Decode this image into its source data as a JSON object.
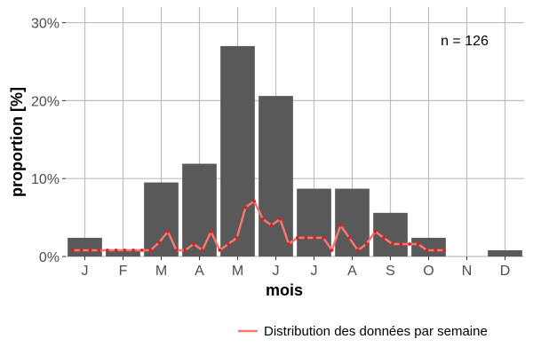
{
  "chart_data": {
    "type": "bar",
    "xlabel": "mois",
    "ylabel": "proportion [%]",
    "categories": [
      "J",
      "F",
      "M",
      "A",
      "M",
      "J",
      "J",
      "A",
      "S",
      "O",
      "N",
      "D"
    ],
    "values": [
      2.4,
      0.8,
      9.5,
      11.9,
      27.0,
      20.6,
      8.7,
      8.7,
      5.6,
      2.4,
      0.0,
      0.8
    ],
    "ylim": [
      0,
      32
    ],
    "yticks": [
      0,
      10,
      20,
      30
    ],
    "ytick_labels": [
      "0%",
      "10%",
      "20%",
      "30%"
    ],
    "grid": true,
    "annotation": "n = 126",
    "legend": {
      "placement": "bottom-right",
      "entries": [
        "Distribution des données par semaine"
      ]
    },
    "bar_color": "#595959",
    "line_color": "#f8766d",
    "weekly_series": {
      "name": "Distribution des données par semaine",
      "x": [
        1,
        2,
        3,
        4,
        5,
        6,
        7,
        8,
        9,
        10,
        11,
        12,
        13,
        14,
        15,
        16,
        17,
        18,
        19,
        20,
        21,
        22,
        23,
        24,
        25,
        26,
        27,
        28,
        29,
        30,
        31,
        32,
        33,
        34,
        35,
        36,
        37,
        38,
        39,
        40,
        41,
        42,
        43,
        44
      ],
      "values": [
        0.8,
        0.8,
        0.8,
        0.8,
        0.8,
        0.8,
        0.8,
        0.8,
        0.8,
        0.8,
        1.8,
        3.2,
        0.8,
        0.8,
        1.6,
        0.8,
        3.2,
        0.8,
        1.6,
        2.4,
        6.3,
        7.1,
        4.8,
        4.0,
        4.8,
        1.6,
        2.4,
        2.4,
        2.4,
        2.4,
        0.8,
        4.0,
        2.4,
        0.8,
        1.6,
        3.2,
        2.4,
        1.6,
        1.6,
        1.6,
        1.6,
        0.8,
        0.8,
        0.8
      ]
    }
  }
}
